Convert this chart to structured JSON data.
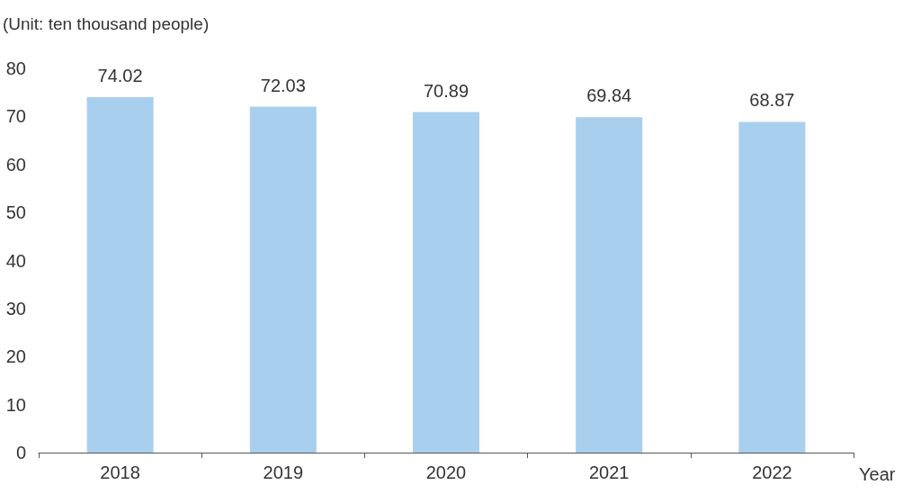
{
  "chart_data": {
    "type": "bar",
    "ylabel": "(Unit: ten thousand people)",
    "xlabel": "Year",
    "categories": [
      "2018",
      "2019",
      "2020",
      "2021",
      "2022"
    ],
    "values": [
      74.02,
      72.03,
      70.89,
      69.84,
      68.87
    ],
    "color": "#a9cfee",
    "ylim": [
      0,
      80
    ],
    "yticks": [
      0,
      10,
      20,
      30,
      40,
      50,
      60,
      70,
      80
    ],
    "data_labels": true,
    "grid": false
  }
}
